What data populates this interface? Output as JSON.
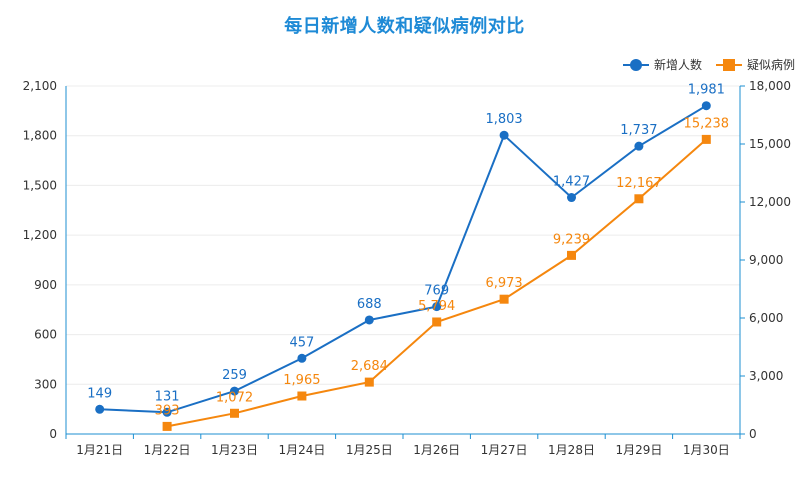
{
  "title": "每日新增人数和疑似病例对比",
  "legend": {
    "series1": "新增人数",
    "series2": "疑似病例"
  },
  "colors": {
    "series1": "#1a6fc4",
    "series2": "#f5870e",
    "axis": "#1c8fd2",
    "grid": "#ececec",
    "text": "#333333"
  },
  "chart_data": {
    "type": "line",
    "title": "每日新增人数和疑似病例对比",
    "categories": [
      "1月21日",
      "1月22日",
      "1月23日",
      "1月24日",
      "1月25日",
      "1月26日",
      "1月27日",
      "1月28日",
      "1月29日",
      "1月30日"
    ],
    "series": [
      {
        "name": "新增人数",
        "axis": "left",
        "marker": "circle",
        "values": [
          149,
          131,
          259,
          457,
          688,
          769,
          1803,
          1427,
          1737,
          1981
        ]
      },
      {
        "name": "疑似病例",
        "axis": "right",
        "marker": "square",
        "values": [
          null,
          393,
          1072,
          1965,
          2684,
          5794,
          6973,
          9239,
          12167,
          15238
        ]
      }
    ],
    "y_left": {
      "min": 0,
      "max": 2100,
      "ticks": [
        "0",
        "300",
        "600",
        "900",
        "1,200",
        "1,500",
        "1,800",
        "2,100"
      ]
    },
    "y_right": {
      "min": 0,
      "max": 18000,
      "ticks": [
        "0",
        "3,000",
        "6,000",
        "9,000",
        "12,000",
        "15,000",
        "18,000"
      ]
    },
    "data_labels": {
      "series1": [
        "149",
        "131",
        "259",
        "457",
        "688",
        "769",
        "1,803",
        "1,427",
        "1,737",
        "1,981"
      ],
      "series2": [
        "",
        "393",
        "1,072",
        "1,965",
        "2,684",
        "5,794",
        "6,973",
        "9,239",
        "12,167",
        "15,238"
      ]
    },
    "grid": true,
    "legend_position": "top-right"
  }
}
